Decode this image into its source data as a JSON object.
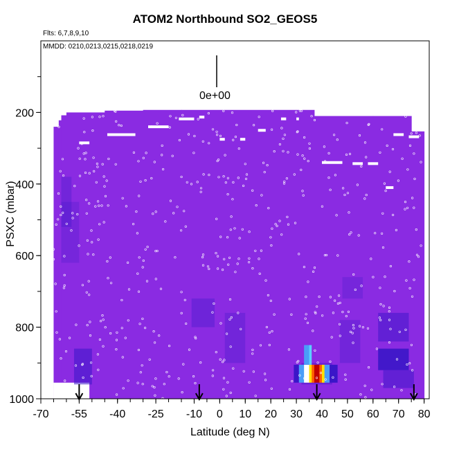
{
  "chart_data": {
    "type": "heatmap",
    "title": "ATOM2 Northbound SO2_GEOS5",
    "flights_note": "Flts: 6,7,8,9,10",
    "dates_note": "MMDD: 0210,0213,0215,0218,0219",
    "legend_value": "0e+00",
    "xlabel": "Latitude (deg N)",
    "ylabel": "PSXC (mbar)",
    "xlim": [
      -70,
      82
    ],
    "ylim": [
      1000,
      0
    ],
    "x_ticks": [
      -70,
      -55,
      -40,
      -25,
      -10,
      0,
      10,
      20,
      30,
      40,
      50,
      60,
      70,
      80
    ],
    "y_ticks": [
      200,
      400,
      600,
      800,
      1000
    ],
    "arrows_lat": [
      -55,
      -8,
      38,
      76
    ],
    "colors": {
      "background_field": "#8a2be2",
      "enhanced": "#3a16c8",
      "high": "#c00000",
      "mid": "#ff6000",
      "low": "#ffe000"
    },
    "grid": false,
    "legend": "top-center"
  }
}
